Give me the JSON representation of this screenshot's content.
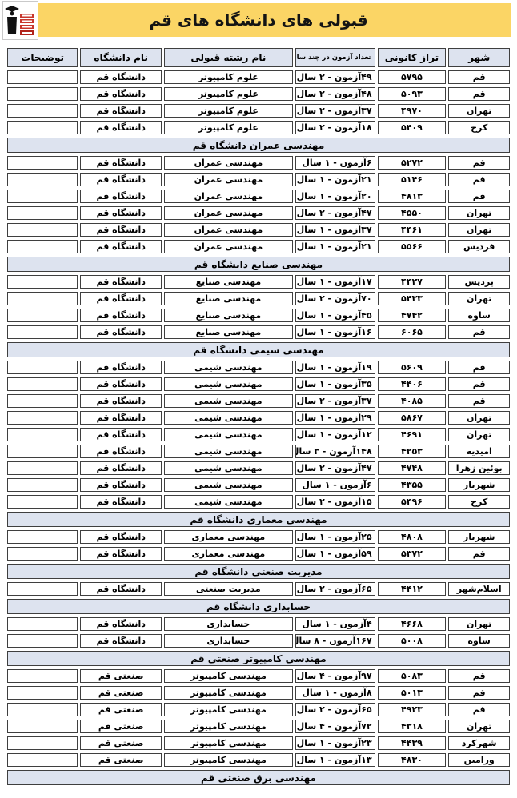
{
  "banner": {
    "title": "قبولی های دانشگاه های قم",
    "logo": "kanoon-ghalamchi-logo"
  },
  "colors": {
    "banner_yellow": "#fbd565",
    "header_bg": "#dde3ef",
    "cell_border": "#3f3f3f",
    "logo_red": "#c8372d"
  },
  "table": {
    "columns": [
      "شهر",
      "تراز کانونی",
      "تعداد آزمون در چند سال",
      "نام رشته قبولی",
      "نام دانشگاه",
      "توضیحات"
    ],
    "sections": [
      {
        "header": null,
        "rows": [
          {
            "city": "قم",
            "score": "۵۷۹۵",
            "exams": "۴۹آزمون - ۲ سال",
            "major": "علوم کامپیوتر",
            "university": "دانشگاه قم",
            "notes": ""
          },
          {
            "city": "قم",
            "score": "۵۰۹۳",
            "exams": "۴۸آزمون - ۲ سال",
            "major": "علوم کامپیوتر",
            "university": "دانشگاه قم",
            "notes": ""
          },
          {
            "city": "تهران",
            "score": "۴۹۷۰",
            "exams": "۳۷آزمون - ۲ سال",
            "major": "علوم کامپیوتر",
            "university": "دانشگاه قم",
            "notes": ""
          },
          {
            "city": "کرج",
            "score": "۵۴۰۹",
            "exams": "۱۸آزمون - ۲ سال",
            "major": "علوم کامپیوتر",
            "university": "دانشگاه قم",
            "notes": ""
          }
        ]
      },
      {
        "header": "مهندسی عمران دانشگاه قم",
        "rows": [
          {
            "city": "قم",
            "score": "۵۲۷۲",
            "exams": "۶آزمون - ۱ سال",
            "major": "مهندسی عمران",
            "university": "دانشگاه قم",
            "notes": ""
          },
          {
            "city": "قم",
            "score": "۵۱۴۶",
            "exams": "۲۱آزمون - ۱ سال",
            "major": "مهندسی عمران",
            "university": "دانشگاه قم",
            "notes": ""
          },
          {
            "city": "قم",
            "score": "۴۸۱۳",
            "exams": "۲۰آزمون - ۱ سال",
            "major": "مهندسی عمران",
            "university": "دانشگاه قم",
            "notes": ""
          },
          {
            "city": "تهران",
            "score": "۴۵۵۰",
            "exams": "۴۷آزمون - ۲ سال",
            "major": "مهندسی عمران",
            "university": "دانشگاه قم",
            "notes": ""
          },
          {
            "city": "تهران",
            "score": "۴۴۶۱",
            "exams": "۳۷آزمون - ۱ سال",
            "major": "مهندسی عمران",
            "university": "دانشگاه قم",
            "notes": ""
          },
          {
            "city": "فردیس",
            "score": "۵۵۶۶",
            "exams": "۲۱آزمون - ۱ سال",
            "major": "مهندسی عمران",
            "university": "دانشگاه قم",
            "notes": ""
          }
        ]
      },
      {
        "header": "مهندسی صنایع دانشگاه قم",
        "rows": [
          {
            "city": "پردیس",
            "score": "۴۴۲۷",
            "exams": "۱۷آزمون - ۱ سال",
            "major": "مهندسی صنایع",
            "university": "دانشگاه قم",
            "notes": ""
          },
          {
            "city": "تهران",
            "score": "۵۴۳۳",
            "exams": "۷۰آزمون - ۲ سال",
            "major": "مهندسی صنایع",
            "university": "دانشگاه قم",
            "notes": ""
          },
          {
            "city": "ساوه",
            "score": "۴۷۴۲",
            "exams": "۴۵آزمون - ۱ سال",
            "major": "مهندسی صنایع",
            "university": "دانشگاه قم",
            "notes": ""
          },
          {
            "city": "قم",
            "score": "۶۰۶۵",
            "exams": "۱۶آزمون - ۱ سال",
            "major": "مهندسی صنایع",
            "university": "دانشگاه قم",
            "notes": ""
          }
        ]
      },
      {
        "header": "مهندسی شیمی دانشگاه قم",
        "rows": [
          {
            "city": "قم",
            "score": "۵۶۰۹",
            "exams": "۱۹آزمون - ۱ سال",
            "major": "مهندسی شیمی",
            "university": "دانشگاه قم",
            "notes": ""
          },
          {
            "city": "قم",
            "score": "۴۴۰۶",
            "exams": "۳۵آزمون - ۱ سال",
            "major": "مهندسی شیمی",
            "university": "دانشگاه قم",
            "notes": ""
          },
          {
            "city": "قم",
            "score": "۴۰۸۵",
            "exams": "۳۷آزمون - ۲ سال",
            "major": "مهندسی شیمی",
            "university": "دانشگاه قم",
            "notes": ""
          },
          {
            "city": "تهران",
            "score": "۵۸۶۷",
            "exams": "۲۹آزمون - ۱ سال",
            "major": "مهندسی شیمی",
            "university": "دانشگاه قم",
            "notes": ""
          },
          {
            "city": "تهران",
            "score": "۴۶۹۱",
            "exams": "۱۲آزمون - ۱ سال",
            "major": "مهندسی شیمی",
            "university": "دانشگاه قم",
            "notes": ""
          },
          {
            "city": "امیدیه",
            "score": "۴۲۵۳",
            "exams": "۱۴۸آزمون - ۳ سال",
            "major": "مهندسی شیمی",
            "university": "دانشگاه قم",
            "notes": ""
          },
          {
            "city": "بوئین زهرا",
            "score": "۴۷۴۸",
            "exams": "۴۷آزمون - ۲ سال",
            "major": "مهندسی شیمی",
            "university": "دانشگاه قم",
            "notes": ""
          },
          {
            "city": "شهریار",
            "score": "۴۳۵۵",
            "exams": "۶آزمون - ۱ سال",
            "major": "مهندسی شیمی",
            "university": "دانشگاه قم",
            "notes": ""
          },
          {
            "city": "کرج",
            "score": "۵۴۹۶",
            "exams": "۱۵آزمون - ۲ سال",
            "major": "مهندسی شیمی",
            "university": "دانشگاه قم",
            "notes": ""
          }
        ]
      },
      {
        "header": "مهندسی معماری دانشگاه قم",
        "rows": [
          {
            "city": "شهریار",
            "score": "۴۸۰۸",
            "exams": "۲۵آزمون - ۱ سال",
            "major": "مهندسی معماری",
            "university": "دانشگاه قم",
            "notes": ""
          },
          {
            "city": "قم",
            "score": "۵۳۷۲",
            "exams": "۵۹آزمون - ۱ سال",
            "major": "مهندسی معماری",
            "university": "دانشگاه قم",
            "notes": ""
          }
        ]
      },
      {
        "header": "مدیریت صنعتی دانشگاه قم",
        "rows": [
          {
            "city": "اسلام‌شهر",
            "score": "۴۴۱۲",
            "exams": "۶۵آزمون - ۲ سال",
            "major": "مدیریت صنعتی",
            "university": "دانشگاه قم",
            "notes": ""
          }
        ]
      },
      {
        "header": "حسابداری دانشگاه قم",
        "rows": [
          {
            "city": "تهران",
            "score": "۴۶۶۸",
            "exams": "۴آزمون - ۱ سال",
            "major": "حسابداری",
            "university": "دانشگاه قم",
            "notes": ""
          },
          {
            "city": "ساوه",
            "score": "۵۰۰۸",
            "exams": "۱۶۷آزمون - ۸ سال",
            "major": "حسابداری",
            "university": "دانشگاه قم",
            "notes": ""
          }
        ]
      },
      {
        "header": "مهندسی کامپیوتر صنعتی قم",
        "rows": [
          {
            "city": "قم",
            "score": "۵۰۸۳",
            "exams": "۹۷آزمون - ۴ سال",
            "major": "مهندسی کامپیوتر",
            "university": "صنعتی قم",
            "notes": ""
          },
          {
            "city": "قم",
            "score": "۵۰۱۳",
            "exams": "۸آزمون - ۱ سال",
            "major": "مهندسی کامپیوتر",
            "university": "صنعتی قم",
            "notes": ""
          },
          {
            "city": "قم",
            "score": "۴۹۲۳",
            "exams": "۶۵آزمون - ۲ سال",
            "major": "مهندسی کامپیوتر",
            "university": "صنعتی قم",
            "notes": ""
          },
          {
            "city": "تهران",
            "score": "۴۳۱۸",
            "exams": "۷۲آزمون - ۴ سال",
            "major": "مهندسی کامپیوتر",
            "university": "صنعتی قم",
            "notes": ""
          },
          {
            "city": "شهرکرد",
            "score": "۴۴۳۹",
            "exams": "۲۳آزمون - ۱ سال",
            "major": "مهندسی کامپیوتر",
            "university": "صنعتی قم",
            "notes": ""
          },
          {
            "city": "ورامین",
            "score": "۴۸۳۰",
            "exams": "۱۳آزمون - ۱ سال",
            "major": "مهندسی کامپیوتر",
            "university": "صنعتی قم",
            "notes": ""
          }
        ]
      },
      {
        "header": "مهندسی برق صنعتی قم",
        "rows": []
      }
    ]
  }
}
